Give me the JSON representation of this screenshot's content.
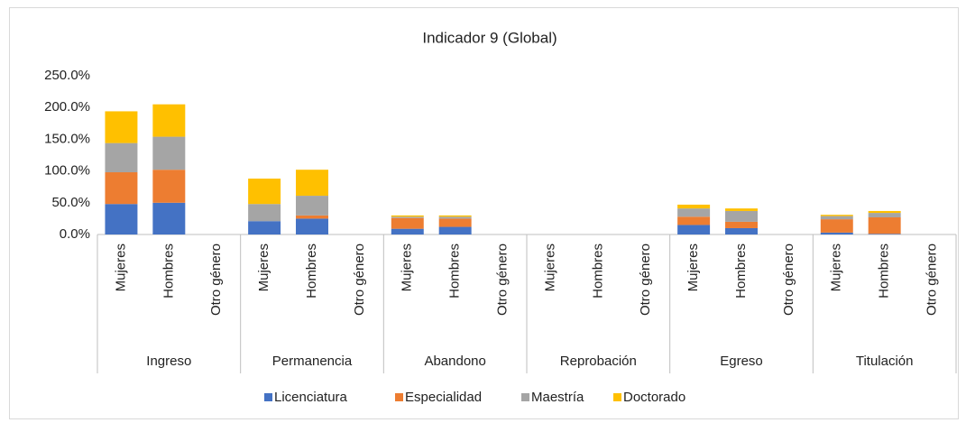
{
  "chart_data": {
    "type": "stacked_bar",
    "title": "Indicador 9 (Global)",
    "groups": [
      "Ingreso",
      "Permanencia",
      "Abandono",
      "Reprobación",
      "Egreso",
      "Titulación"
    ],
    "categories": [
      "Mujeres",
      "Hombres",
      "Otro género",
      "Mujeres",
      "Hombres",
      "Otro género",
      "Mujeres",
      "Hombres",
      "Otro género",
      "Mujeres",
      "Hombres",
      "Otro género",
      "Mujeres",
      "Hombres",
      "Otro género",
      "Mujeres",
      "Hombres",
      "Otro género"
    ],
    "series": [
      {
        "name": "Licenciatura",
        "color": "#4472c4",
        "values": [
          48,
          50,
          0,
          21,
          25,
          0,
          9,
          12,
          0,
          0,
          0,
          0,
          15,
          10,
          0,
          3,
          1,
          0
        ]
      },
      {
        "name": "Especialidad",
        "color": "#ed7d31",
        "values": [
          50,
          52,
          0,
          0,
          5,
          0,
          17,
          13,
          0,
          0,
          0,
          0,
          13,
          10,
          0,
          21,
          26,
          0
        ]
      },
      {
        "name": "Maestría",
        "color": "#a5a5a5",
        "values": [
          46,
          52,
          0,
          27,
          31,
          0,
          2,
          3,
          0,
          0,
          0,
          0,
          13,
          17,
          0,
          5,
          7,
          0
        ]
      },
      {
        "name": "Doctorado",
        "color": "#ffc000",
        "values": [
          50,
          51,
          0,
          40,
          41,
          0,
          2,
          2,
          0,
          0,
          0,
          0,
          6,
          4,
          0,
          2,
          3,
          0
        ]
      }
    ],
    "ylim": [
      0,
      250
    ],
    "yticks": [
      {
        "value": 0,
        "label": "0.0%"
      },
      {
        "value": 50,
        "label": "50.0%"
      },
      {
        "value": 100,
        "label": "100.0%"
      },
      {
        "value": 150,
        "label": "150.0%"
      },
      {
        "value": 200,
        "label": "200.0%"
      },
      {
        "value": 250,
        "label": "250.0%"
      }
    ],
    "legend": "bottom"
  }
}
